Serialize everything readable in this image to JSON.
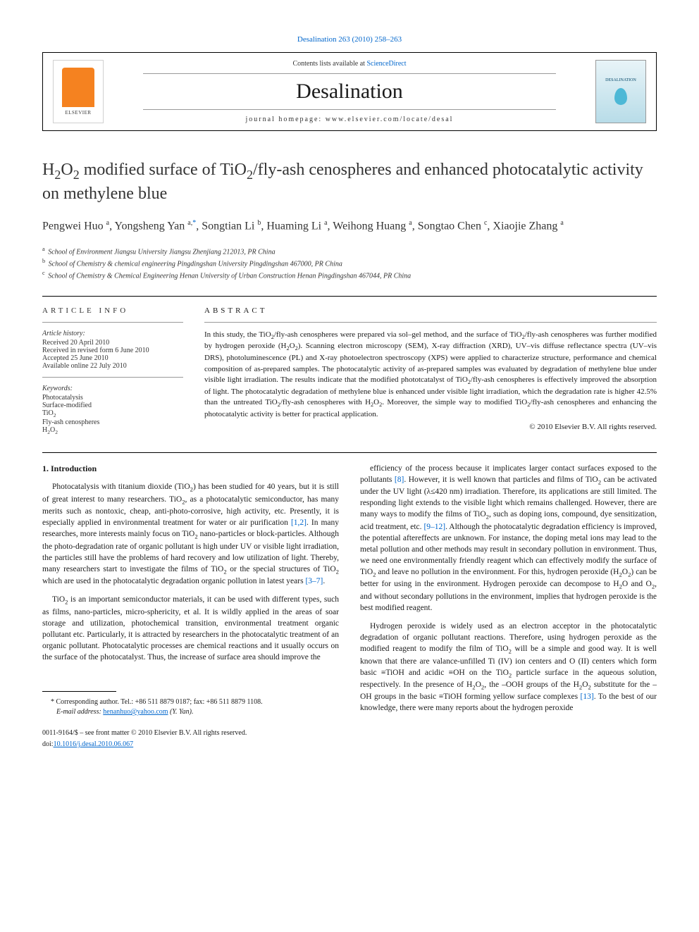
{
  "header": {
    "citation": "Desalination 263 (2010) 258–263",
    "contents_prefix": "Contents lists available at ",
    "contents_link": "ScienceDirect",
    "journal_title": "Desalination",
    "homepage_text": "journal homepage: www.elsevier.com/locate/desal",
    "publisher": "ELSEVIER",
    "cover_label": "DESALINATION"
  },
  "article": {
    "title_html": "H<sub>2</sub>O<sub>2</sub> modified surface of TiO<sub>2</sub>/fly-ash cenospheres and enhanced photocatalytic activity on methylene blue",
    "authors_html": "Pengwei Huo <sup>a</sup>, Yongsheng Yan <sup>a,</sup><sup class='corr-star'>*</sup>, Songtian Li <sup>b</sup>, Huaming Li <sup>a</sup>, Weihong Huang <sup>a</sup>, Songtao Chen <sup>c</sup>, Xiaojie Zhang <sup>a</sup>",
    "affiliations": [
      {
        "sup": "a",
        "text": "School of Environment Jiangsu University Jiangsu Zhenjiang 212013, PR China"
      },
      {
        "sup": "b",
        "text": "School of Chemistry & chemical engineering Pingdingshan University Pingdingshan 467000, PR China"
      },
      {
        "sup": "c",
        "text": "School of Chemistry & Chemical Engineering Henan University of Urban Construction Henan Pingdingshan 467044, PR China"
      }
    ]
  },
  "info": {
    "heading": "article info",
    "history_label": "Article history:",
    "history": [
      "Received 20 April 2010",
      "Received in revised form 6 June 2010",
      "Accepted 25 June 2010",
      "Available online 22 July 2010"
    ],
    "keywords_label": "Keywords:",
    "keywords_html": [
      "Photocatalysis",
      "Surface-modified",
      "TiO<sub>2</sub>",
      "Fly-ash cenospheres",
      "H<sub>2</sub>O<sub>2</sub>"
    ]
  },
  "abstract": {
    "heading": "abstract",
    "text_html": "In this study, the TiO<sub>2</sub>/fly-ash cenospheres were prepared via sol–gel method, and the surface of TiO<sub>2</sub>/fly-ash cenospheres was further modified by hydrogen peroxide (H<sub>2</sub>O<sub>2</sub>). Scanning electron microscopy (SEM), X-ray diffraction (XRD), UV–vis diffuse reflectance spectra (UV–vis DRS), photoluminescence (PL) and X-ray photoelectron spectroscopy (XPS) were applied to characterize structure, performance and chemical composition of as-prepared samples. The photocatalytic activity of as-prepared samples was evaluated by degradation of methylene blue under visible light irradiation. The results indicate that the modified phototcatalyst of TiO<sub>2</sub>/fly-ash cenospheres is effectively improved the absorption of light. The photocatalytic degradation of methylene blue is enhanced under visible light irradiation, which the degradation rate is higher 42.5% than the untreated TiO<sub>2</sub>/fly-ash cenospheres with H<sub>2</sub>O<sub>2</sub>. Moreover, the simple way to modified TiO<sub>2</sub>/fly-ash cenospheres and enhancing the photocatalytic activity is better for practical application.",
    "copyright": "© 2010 Elsevier B.V. All rights reserved."
  },
  "body": {
    "section1_heading": "1. Introduction",
    "col1_p1_html": "Photocatalysis with titanium dioxide (TiO<sub>2</sub>) has been studied for 40 years, but it is still of great interest to many researchers. TiO<sub>2</sub>, as a photocatalytic semiconductor, has many merits such as nontoxic, cheap, anti-photo-corrosive, high activity, etc. Presently, it is especially applied in environmental treatment for water or air purification <span class='ref-link'>[1,2]</span>. In many researches, more interests mainly focus on TiO<sub>2</sub> nano-particles or block-particles. Although the photo-degradation rate of organic pollutant is high under UV or visible light irradiation, the particles still have the problems of hard recovery and low utilization of light. Thereby, many researchers start to investigate the films of TiO<sub>2</sub> or the special structures of TiO<sub>2</sub> which are used in the photocatalytic degradation organic pollution in latest years <span class='ref-link'>[3–7]</span>.",
    "col1_p2_html": "TiO<sub>2</sub> is an important semiconductor materials, it can be used with different types, such as films, nano-particles, micro-sphericity, et al. It is wildly applied in the areas of soar storage and utilization, photochemical transition, environmental treatment organic pollutant etc. Particularly, it is attracted by researchers in the photocatalytic treatment of an organic pollutant. Photocatalytic processes are chemical reactions and it usually occurs on the surface of the photocatalyst. Thus, the increase of surface area should improve the",
    "col2_p1_html": "efficiency of the process because it implicates larger contact surfaces exposed to the pollutants <span class='ref-link'>[8]</span>. However, it is well known that particles and films of TiO<sub>2</sub> can be activated under the UV light (λ≤420 nm) irradiation. Therefore, its applications are still limited. The responding light extends to the visible light which remains challenged. However, there are many ways to modify the films of TiO<sub>2</sub>, such as doping ions, compound, dye sensitization, acid treatment, etc. <span class='ref-link'>[9–12]</span>. Although the photocatalytic degradation efficiency is improved, the potential aftereffects are unknown. For instance, the doping metal ions may lead to the metal pollution and other methods may result in secondary pollution in environment. Thus, we need one environmentally friendly reagent which can effectively modify the surface of TiO<sub>2</sub> and leave no pollution in the environment. For this, hydrogen peroxide (H<sub>2</sub>O<sub>2</sub>) can be better for using in the environment. Hydrogen peroxide can decompose to H<sub>2</sub>O and O<sub>2</sub>, and without secondary pollutions in the environment, implies that hydrogen peroxide is the best modified reagent.",
    "col2_p2_html": "Hydrogen peroxide is widely used as an electron acceptor in the photocatalytic degradation of organic pollutant reactions. Therefore, using hydrogen peroxide as the modified reagent to modify the film of TiO<sub>2</sub> will be a simple and good way. It is well known that there are valance-unfilled Ti (IV) ion centers and O (II) centers which form basic ≡TiOH and acidic ≡OH on the TiO<sub>2</sub> particle surface in the aqueous solution, respectively. In the presence of H<sub>2</sub>O<sub>2</sub>, the –OOH groups of the H<sub>2</sub>O<sub>2</sub> substitute for the –OH groups in the basic ≡TiOH forming yellow surface complexes <span class='ref-link'>[13]</span>. To the best of our knowledge, there were many reports about the hydrogen peroxide"
  },
  "footer": {
    "corr_note": "* Corresponding author. Tel.: +86 511 8879 0187; fax: +86 511 8879 1108.",
    "email_label": "E-mail address: ",
    "email": "henanhuo@yahoo.com",
    "email_suffix": " (Y. Yan).",
    "front_matter": "0011-9164/$ – see front matter © 2010 Elsevier B.V. All rights reserved.",
    "doi_prefix": "doi:",
    "doi": "10.1016/j.desal.2010.06.067"
  },
  "colors": {
    "link": "#0066cc",
    "text": "#1a1a1a",
    "elsevier_orange": "#f58220"
  }
}
